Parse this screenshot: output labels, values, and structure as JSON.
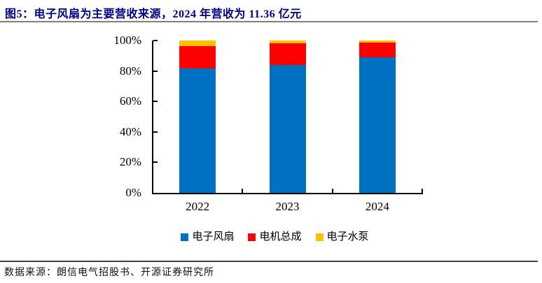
{
  "title": "图5：电子风扇为主要营收来源，2024 年营收为 11.36 亿元",
  "source": "数据来源：朗信电气招股书、开源证券研究所",
  "colors": {
    "title": "#000080",
    "blue": "#0070C0",
    "red": "#FF0000",
    "yellow": "#FFC000",
    "axis": "#000000",
    "top_rule": "#7F7F7F",
    "bottom_rule": "#404040"
  },
  "chart_data": {
    "type": "bar",
    "stacked": true,
    "unit": "%",
    "categories": [
      "2022",
      "2023",
      "2024"
    ],
    "series": [
      {
        "name": "电子风扇",
        "color_key": "blue",
        "values": [
          81.5,
          84.0,
          89.0
        ]
      },
      {
        "name": "电机总成",
        "color_key": "red",
        "values": [
          15.0,
          14.0,
          9.5
        ]
      },
      {
        "name": "电子水泵",
        "color_key": "yellow",
        "values": [
          3.5,
          2.0,
          1.5
        ]
      }
    ],
    "title": "",
    "xlabel": "",
    "ylabel": "",
    "ylim": [
      0,
      100
    ],
    "yticks": [
      "0%",
      "20%",
      "40%",
      "60%",
      "80%",
      "100%"
    ],
    "grid": false,
    "legend_position": "bottom"
  }
}
